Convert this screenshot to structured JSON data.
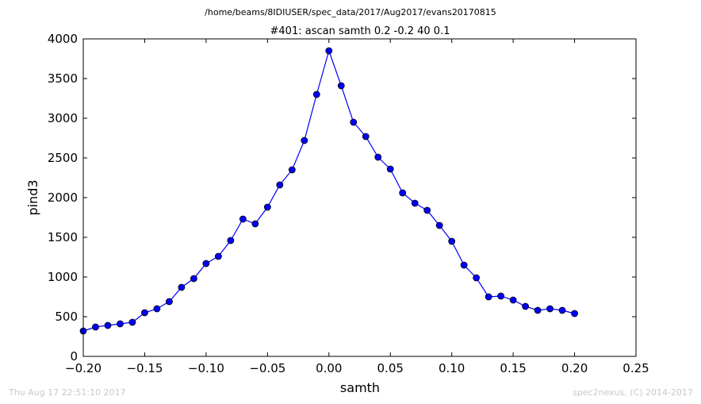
{
  "header": {
    "path": "/home/beams/8IDIUSER/spec_data/2017/Aug2017/evans20170815"
  },
  "footer": {
    "timestamp": "Thu Aug 17 22:51:10 2017",
    "credit": "spec2nexus, (C) 2014-2017"
  },
  "colors": {
    "line": "#0000ff",
    "marker_fill": "#0000ff",
    "marker_edge": "#000000",
    "footer_text": "#c8c8c8"
  },
  "chart_data": {
    "type": "line",
    "title": "#401: ascan  samth 0.2 -0.2  40 0.1",
    "xlabel": "samth",
    "ylabel": "pind3",
    "xlim": [
      -0.2,
      0.25
    ],
    "ylim": [
      0,
      4000
    ],
    "xticks": [
      -0.2,
      -0.15,
      -0.1,
      -0.05,
      0.0,
      0.05,
      0.1,
      0.15,
      0.2,
      0.25
    ],
    "xtick_labels": [
      "−0.20",
      "−0.15",
      "−0.10",
      "−0.05",
      "0.00",
      "0.05",
      "0.10",
      "0.15",
      "0.20",
      "0.25"
    ],
    "yticks": [
      0,
      500,
      1000,
      1500,
      2000,
      2500,
      3000,
      3500,
      4000
    ],
    "ytick_labels": [
      "0",
      "500",
      "1000",
      "1500",
      "2000",
      "2500",
      "3000",
      "3500",
      "4000"
    ],
    "grid": false,
    "series": [
      {
        "marker": "circle",
        "x": [
          -0.2,
          -0.19,
          -0.18,
          -0.17,
          -0.16,
          -0.15,
          -0.14,
          -0.13,
          -0.12,
          -0.11,
          -0.1,
          -0.09,
          -0.08,
          -0.07,
          -0.06,
          -0.05,
          -0.04,
          -0.03,
          -0.02,
          -0.01,
          0.0,
          0.01,
          0.02,
          0.03,
          0.04,
          0.05,
          0.06,
          0.07,
          0.08,
          0.09,
          0.1,
          0.11,
          0.12,
          0.13,
          0.14,
          0.15,
          0.16,
          0.17,
          0.18,
          0.19,
          0.2
        ],
        "y": [
          320,
          370,
          390,
          410,
          430,
          550,
          600,
          690,
          870,
          980,
          1170,
          1260,
          1460,
          1730,
          1670,
          1880,
          2160,
          2350,
          2720,
          3300,
          3850,
          3410,
          2950,
          2770,
          2510,
          2360,
          2060,
          1930,
          1840,
          1650,
          1450,
          1150,
          990,
          750,
          760,
          710,
          630,
          580,
          600,
          580,
          540
        ]
      }
    ]
  }
}
